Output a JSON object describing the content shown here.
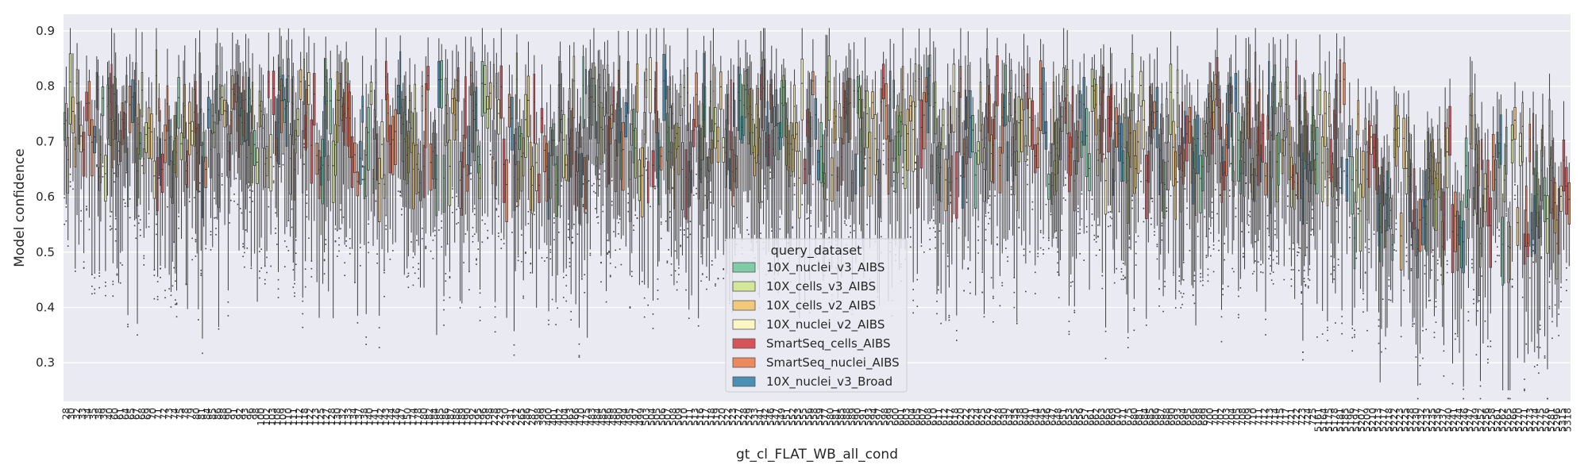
{
  "chart_data": {
    "type": "box",
    "xlabel": "gt_cl_FLAT_WB_all_cond",
    "ylabel": "Model confidence",
    "ylim": [
      0.23,
      0.93
    ],
    "yticks": [
      0.3,
      0.4,
      0.5,
      0.6,
      0.7,
      0.8,
      0.9
    ],
    "grid": true,
    "background": "#eaeaf2",
    "box_edge_color": "#3f3f3f",
    "legend": {
      "title": "query_dataset",
      "placement": "center-bottom",
      "entries": [
        {
          "name": "10X_nuclei_v3_AIBS",
          "color": "#7fcca5"
        },
        {
          "name": "10X_cells_v3_AIBS",
          "color": "#d3e69a"
        },
        {
          "name": "10X_cells_v2_AIBS",
          "color": "#f1c97a"
        },
        {
          "name": "10X_nuclei_v2_AIBS",
          "color": "#fbf7c5"
        },
        {
          "name": "SmartSeq_cells_AIBS",
          "color": "#d65458"
        },
        {
          "name": "SmartSeq_nuclei_AIBS",
          "color": "#ec8a5d"
        },
        {
          "name": "10X_nuclei_v3_Broad",
          "color": "#4a8fb4"
        }
      ]
    },
    "categories": [
      "28",
      "30",
      "32",
      "33",
      "34",
      "35",
      "38",
      "39",
      "40",
      "60",
      "61",
      "64",
      "65",
      "67",
      "68",
      "69",
      "70",
      "71",
      "72",
      "73",
      "74",
      "75",
      "78",
      "79",
      "80",
      "81",
      "84",
      "85",
      "86",
      "88",
      "90",
      "91",
      "92",
      "93",
      "96",
      "98",
      "100",
      "102",
      "103",
      "108",
      "109",
      "110",
      "111",
      "112",
      "118",
      "122",
      "123",
      "125",
      "127",
      "128",
      "130",
      "132",
      "133",
      "134",
      "137",
      "138",
      "140",
      "141",
      "142",
      "143",
      "144",
      "146",
      "147",
      "150",
      "174",
      "178",
      "180",
      "182",
      "184",
      "185",
      "186",
      "187",
      "188",
      "189",
      "190",
      "192",
      "195",
      "196",
      "198",
      "228",
      "229",
      "230",
      "231",
      "232",
      "265",
      "286",
      "287",
      "398",
      "399",
      "400",
      "401",
      "402",
      "404",
      "463",
      "466",
      "470",
      "475",
      "483",
      "484",
      "485",
      "486",
      "488",
      "490",
      "494",
      "495",
      "497",
      "499",
      "503",
      "504",
      "505",
      "506",
      "507",
      "508",
      "509",
      "510",
      "511",
      "513",
      "516",
      "517",
      "518",
      "519",
      "520",
      "522",
      "523",
      "527",
      "528",
      "529",
      "533",
      "541",
      "542",
      "546",
      "547",
      "549",
      "551",
      "552",
      "553",
      "555",
      "556",
      "558",
      "559",
      "577",
      "580",
      "581",
      "585",
      "588",
      "589",
      "590",
      "591",
      "593",
      "594",
      "597",
      "598",
      "599",
      "600",
      "601",
      "603",
      "604",
      "605",
      "607",
      "608",
      "610",
      "611",
      "612",
      "617",
      "618",
      "620",
      "622",
      "623",
      "624",
      "625",
      "626",
      "627",
      "628",
      "630",
      "632",
      "635",
      "638",
      "640",
      "641",
      "644",
      "645",
      "646",
      "647",
      "648",
      "651",
      "653",
      "655",
      "656",
      "657",
      "661",
      "662",
      "663",
      "665",
      "669",
      "670",
      "671",
      "675",
      "680",
      "681",
      "684",
      "685",
      "686",
      "687",
      "688",
      "690",
      "693",
      "694",
      "695",
      "696",
      "698",
      "699",
      "700",
      "701",
      "702",
      "703",
      "704",
      "705",
      "708",
      "709",
      "710",
      "711",
      "712",
      "713",
      "714",
      "715",
      "717",
      "721",
      "722",
      "723",
      "724",
      "725",
      "5161",
      "5164",
      "5175",
      "5178",
      "5181",
      "5185",
      "5196",
      "5197",
      "5207",
      "5209",
      "5210",
      "5213",
      "5217",
      "5218",
      "5222",
      "5223",
      "5225",
      "5228",
      "5230",
      "5232",
      "5233",
      "5235",
      "5236",
      "5237",
      "5240",
      "5241",
      "5244",
      "5246",
      "5247",
      "5249",
      "5252",
      "5256",
      "5258",
      "5261",
      "5262",
      "5265",
      "5266",
      "5270",
      "5271",
      "5273",
      "5274",
      "5275",
      "5276",
      "5281",
      "5296",
      "5315",
      "5318"
    ]
  }
}
